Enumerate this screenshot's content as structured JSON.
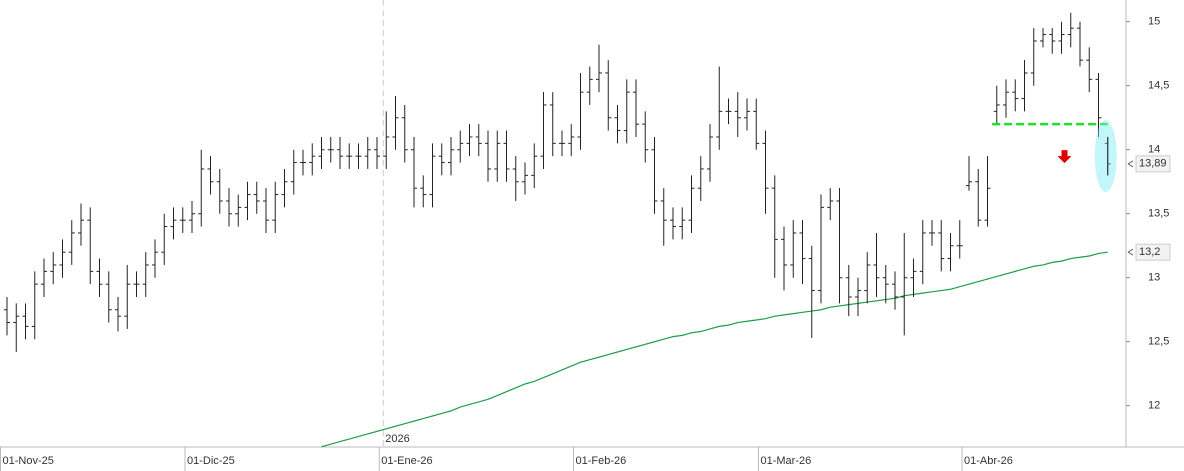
{
  "chart_data": {
    "type": "ohlc",
    "categories": [
      "01-Nov-25",
      null,
      null,
      null,
      null,
      null,
      null,
      null,
      null,
      null,
      null,
      null,
      null,
      null,
      null,
      null,
      null,
      null,
      null,
      null,
      "01-Dic-25",
      null,
      null,
      null,
      null,
      null,
      null,
      null,
      null,
      null,
      null,
      null,
      null,
      null,
      null,
      null,
      null,
      null,
      null,
      null,
      null,
      "01-Ene-26",
      null,
      null,
      null,
      null,
      null,
      null,
      null,
      null,
      null,
      null,
      null,
      null,
      null,
      null,
      null,
      null,
      null,
      null,
      null,
      null,
      "01-Feb-26",
      null,
      null,
      null,
      null,
      null,
      null,
      null,
      null,
      null,
      null,
      null,
      null,
      null,
      null,
      null,
      null,
      null,
      null,
      null,
      "01-Mar-26",
      null,
      null,
      null,
      null,
      null,
      null,
      null,
      null,
      null,
      null,
      null,
      null,
      null,
      null,
      null,
      null,
      null,
      null,
      null,
      null,
      null,
      "01-Abr-26",
      null,
      null,
      null,
      null,
      null,
      null,
      null,
      null,
      null,
      null,
      null,
      null,
      null,
      null,
      null
    ],
    "open": [
      12.75,
      12.65,
      12.7,
      12.62,
      12.95,
      13.05,
      13.1,
      13.2,
      13.35,
      13.45,
      13.05,
      12.95,
      12.75,
      12.7,
      12.95,
      12.95,
      13.1,
      13.2,
      13.4,
      13.45,
      13.45,
      13.5,
      13.85,
      13.75,
      13.6,
      13.5,
      13.55,
      13.65,
      13.6,
      13.45,
      13.65,
      13.75,
      13.9,
      13.9,
      13.95,
      14.0,
      14.0,
      13.95,
      13.95,
      13.95,
      14.0,
      13.95,
      14.1,
      14.25,
      14.0,
      13.7,
      13.65,
      13.95,
      13.9,
      14.0,
      14.05,
      14.1,
      14.05,
      13.85,
      14.05,
      13.85,
      13.75,
      13.8,
      13.95,
      14.35,
      14.05,
      14.05,
      14.1,
      14.45,
      14.55,
      14.6,
      14.25,
      14.15,
      14.45,
      14.2,
      14.0,
      13.6,
      13.45,
      13.4,
      13.45,
      13.7,
      13.85,
      14.1,
      14.3,
      14.3,
      14.25,
      14.3,
      14.05,
      13.7,
      13.3,
      13.1,
      13.35,
      13.15,
      12.9,
      13.55,
      13.6,
      13.0,
      12.85,
      12.9,
      13.1,
      13.0,
      12.95,
      12.85,
      13.0,
      13.05,
      13.35,
      13.35,
      13.15,
      13.25,
      13.72,
      13.75,
      13.45,
      14.3,
      14.35,
      14.45,
      14.4,
      14.6,
      14.85,
      14.9,
      14.85,
      14.9,
      14.95,
      14.7,
      14.55,
      14.05
    ],
    "high": [
      12.85,
      12.8,
      12.8,
      13.05,
      13.15,
      13.2,
      13.3,
      13.45,
      13.58,
      13.55,
      13.15,
      13.05,
      12.85,
      13.1,
      13.05,
      13.2,
      13.3,
      13.5,
      13.55,
      13.55,
      13.6,
      14.0,
      13.95,
      13.85,
      13.7,
      13.65,
      13.75,
      13.75,
      13.7,
      13.75,
      13.85,
      14.0,
      14.0,
      14.05,
      14.1,
      14.1,
      14.1,
      14.05,
      14.05,
      14.1,
      14.1,
      14.3,
      14.42,
      14.35,
      14.1,
      13.8,
      14.05,
      14.05,
      14.1,
      14.15,
      14.2,
      14.2,
      14.15,
      14.15,
      14.15,
      13.95,
      13.9,
      14.05,
      14.45,
      14.45,
      14.15,
      14.2,
      14.6,
      14.65,
      14.82,
      14.7,
      14.35,
      14.55,
      14.55,
      14.3,
      14.1,
      13.7,
      13.55,
      13.55,
      13.8,
      13.95,
      14.2,
      14.65,
      14.4,
      14.45,
      14.4,
      14.4,
      14.15,
      13.8,
      13.4,
      13.45,
      13.45,
      13.25,
      13.65,
      13.7,
      13.7,
      13.1,
      13.0,
      13.2,
      13.35,
      13.1,
      13.05,
      13.35,
      13.15,
      13.45,
      13.45,
      13.45,
      13.35,
      13.45,
      13.95,
      13.85,
      13.95,
      14.5,
      14.55,
      14.55,
      14.7,
      14.95,
      14.95,
      14.95,
      15.0,
      15.07,
      15.0,
      14.8,
      14.6,
      14.1
    ],
    "low": [
      12.55,
      12.42,
      12.52,
      12.52,
      12.85,
      12.95,
      13.0,
      13.1,
      13.25,
      12.95,
      12.85,
      12.65,
      12.58,
      12.6,
      12.85,
      12.85,
      13.0,
      13.1,
      13.3,
      13.35,
      13.35,
      13.4,
      13.65,
      13.5,
      13.4,
      13.4,
      13.45,
      13.5,
      13.35,
      13.35,
      13.55,
      13.65,
      13.8,
      13.8,
      13.85,
      13.9,
      13.85,
      13.85,
      13.85,
      13.85,
      13.85,
      13.85,
      14.0,
      13.9,
      13.55,
      13.55,
      13.55,
      13.8,
      13.8,
      13.9,
      13.95,
      13.95,
      13.75,
      13.75,
      13.75,
      13.6,
      13.65,
      13.7,
      13.85,
      13.95,
      13.95,
      13.95,
      14.0,
      14.35,
      14.45,
      14.15,
      14.05,
      14.05,
      14.1,
      13.9,
      13.5,
      13.25,
      13.3,
      13.3,
      13.35,
      13.6,
      13.75,
      14.0,
      14.2,
      14.1,
      14.15,
      14.0,
      13.5,
      13.0,
      12.9,
      13.0,
      12.95,
      12.53,
      12.8,
      13.45,
      12.8,
      12.7,
      12.7,
      12.8,
      12.85,
      12.8,
      12.75,
      12.55,
      12.85,
      12.95,
      13.25,
      13.05,
      13.05,
      13.15,
      13.68,
      13.4,
      13.4,
      14.2,
      14.25,
      14.3,
      14.3,
      14.5,
      14.8,
      14.75,
      14.75,
      14.8,
      14.65,
      14.45,
      14.1,
      13.8
    ],
    "close": [
      12.65,
      12.7,
      12.62,
      12.95,
      13.05,
      13.1,
      13.2,
      13.35,
      13.45,
      13.05,
      12.95,
      12.75,
      12.7,
      12.95,
      12.95,
      13.1,
      13.2,
      13.4,
      13.45,
      13.45,
      13.5,
      13.85,
      13.75,
      13.6,
      13.5,
      13.55,
      13.65,
      13.6,
      13.45,
      13.65,
      13.75,
      13.9,
      13.9,
      13.95,
      14.0,
      14.0,
      13.95,
      13.95,
      13.95,
      14.0,
      13.95,
      14.1,
      14.25,
      14.0,
      13.7,
      13.65,
      13.95,
      13.9,
      14.0,
      14.05,
      14.1,
      14.05,
      13.85,
      14.05,
      13.85,
      13.75,
      13.8,
      13.95,
      14.35,
      14.05,
      14.05,
      14.1,
      14.45,
      14.55,
      14.6,
      14.25,
      14.15,
      14.45,
      14.2,
      14.0,
      13.6,
      13.45,
      13.4,
      13.45,
      13.7,
      13.85,
      14.1,
      14.3,
      14.3,
      14.25,
      14.3,
      14.05,
      13.7,
      13.3,
      13.1,
      13.35,
      13.15,
      12.9,
      13.55,
      13.6,
      13.0,
      12.85,
      12.9,
      13.1,
      13.0,
      12.95,
      12.85,
      13.0,
      13.05,
      13.35,
      13.35,
      13.15,
      13.25,
      13.25,
      13.75,
      13.45,
      13.7,
      14.35,
      14.45,
      14.4,
      14.6,
      14.85,
      14.9,
      14.85,
      14.9,
      14.95,
      14.7,
      14.55,
      14.25,
      13.89
    ],
    "bar_color": "#222222",
    "moving_average": {
      "color": "#1e9e4a",
      "values": [
        null,
        null,
        null,
        null,
        null,
        null,
        null,
        null,
        null,
        null,
        null,
        null,
        null,
        null,
        null,
        null,
        null,
        null,
        null,
        null,
        null,
        null,
        null,
        null,
        null,
        null,
        null,
        null,
        null,
        null,
        null,
        null,
        null,
        null,
        11.68,
        11.7,
        11.72,
        11.74,
        11.76,
        11.78,
        11.8,
        11.82,
        11.84,
        11.86,
        11.88,
        11.9,
        11.92,
        11.94,
        11.96,
        11.99,
        12.01,
        12.03,
        12.05,
        12.08,
        12.11,
        12.14,
        12.17,
        12.19,
        12.22,
        12.25,
        12.28,
        12.31,
        12.34,
        12.36,
        12.38,
        12.4,
        12.42,
        12.44,
        12.46,
        12.48,
        12.5,
        12.52,
        12.54,
        12.55,
        12.57,
        12.58,
        12.6,
        12.62,
        12.63,
        12.65,
        12.66,
        12.67,
        12.68,
        12.7,
        12.71,
        12.72,
        12.73,
        12.74,
        12.75,
        12.77,
        12.78,
        12.79,
        12.8,
        12.81,
        12.82,
        12.83,
        12.84,
        12.86,
        12.87,
        12.88,
        12.89,
        12.9,
        12.91,
        12.93,
        12.95,
        12.97,
        12.99,
        13.01,
        13.03,
        13.05,
        13.07,
        13.09,
        13.1,
        13.12,
        13.13,
        13.15,
        13.16,
        13.17,
        13.19,
        13.2
      ]
    },
    "ylim": [
      11.67,
      15.17
    ],
    "yticks": [
      12,
      {
        "value": 12.5,
        "label": "12,5"
      },
      13,
      {
        "value": 13.5,
        "label": "13,5"
      },
      14,
      {
        "value": 14.5,
        "label": "14,5"
      },
      15
    ],
    "price_markers": [
      {
        "value": 13.89,
        "label": "13,89"
      },
      {
        "value": 13.2,
        "label": "13,2"
      }
    ],
    "year_annotation": "2026",
    "support_line": {
      "value": 14.2,
      "color": "#22dd22"
    },
    "grid": false
  }
}
